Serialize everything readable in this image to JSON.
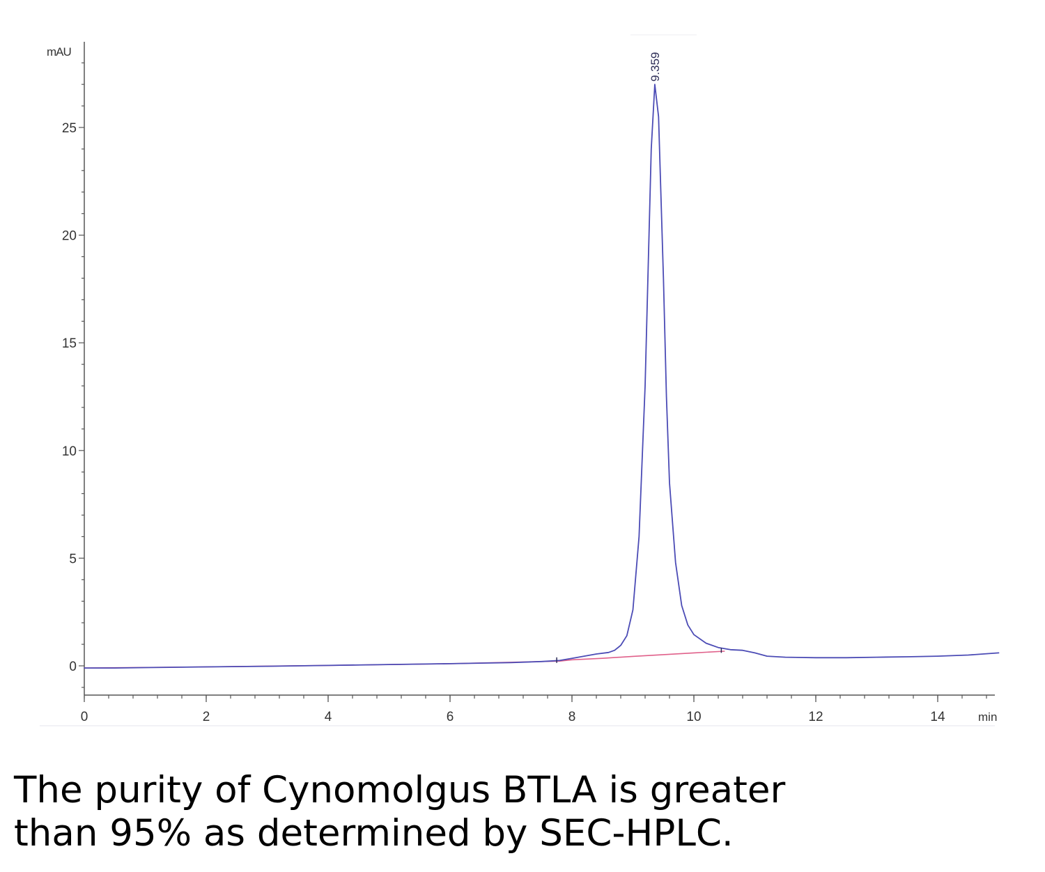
{
  "chart_data": {
    "type": "line",
    "ylabel": "mAU",
    "xlabel": "min",
    "xlim": [
      0,
      15
    ],
    "ylim": [
      -1.5,
      28.5
    ],
    "x_ticks": [
      0,
      2,
      4,
      6,
      8,
      10,
      12,
      14
    ],
    "y_ticks": [
      0,
      5,
      10,
      15,
      20,
      25
    ],
    "peak_annotation": {
      "x": 9.359,
      "y": 27.0,
      "label": "9.359"
    },
    "series": [
      {
        "color": "#4b4bb5",
        "x": [
          0,
          0.5,
          1,
          2,
          3,
          4,
          5,
          6,
          7,
          7.5,
          7.8,
          8.0,
          8.2,
          8.4,
          8.6,
          8.7,
          8.8,
          8.9,
          9.0,
          9.1,
          9.2,
          9.25,
          9.3,
          9.359,
          9.42,
          9.5,
          9.55,
          9.6,
          9.7,
          9.8,
          9.9,
          10.0,
          10.2,
          10.4,
          10.6,
          10.8,
          11.0,
          11.2,
          11.5,
          12,
          12.5,
          13,
          13.5,
          14,
          14.5,
          15
        ],
        "y": [
          -0.1,
          -0.1,
          -0.08,
          -0.05,
          -0.02,
          0.02,
          0.06,
          0.1,
          0.15,
          0.2,
          0.25,
          0.35,
          0.45,
          0.55,
          0.62,
          0.72,
          0.95,
          1.4,
          2.6,
          6.0,
          13.0,
          18.5,
          24.0,
          27.0,
          25.5,
          18.0,
          12.5,
          8.5,
          4.8,
          2.8,
          1.9,
          1.45,
          1.05,
          0.85,
          0.75,
          0.72,
          0.6,
          0.45,
          0.4,
          0.38,
          0.38,
          0.4,
          0.42,
          0.45,
          0.5,
          0.6
        ]
      },
      {
        "color": "#e0608a",
        "x": [
          0,
          2,
          4,
          6,
          7.8,
          8.0,
          8.5,
          9.0,
          9.5,
          10.0,
          10.5
        ],
        "y": [
          -0.1,
          -0.05,
          0.02,
          0.1,
          0.22,
          0.28,
          0.35,
          0.44,
          0.52,
          0.6,
          0.68
        ]
      }
    ]
  },
  "caption": {
    "line1": "The purity of Cynomolgus BTLA is greater",
    "line2": "than 95% as determined by SEC-HPLC."
  }
}
